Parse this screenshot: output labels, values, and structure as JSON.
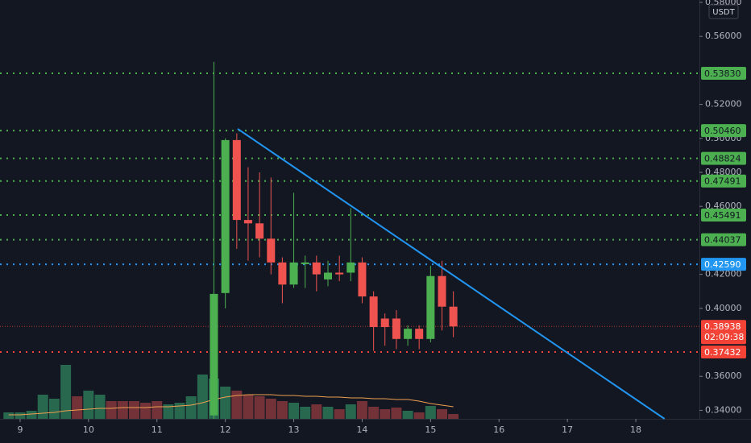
{
  "chart_data": {
    "type": "candlestick",
    "currency": "USDT",
    "xlim": [
      8.706,
      18.93
    ],
    "ylim": [
      0.335,
      0.5814
    ],
    "xticks": [
      9,
      10,
      11,
      12,
      13,
      14,
      15,
      16,
      17,
      18
    ],
    "yticks": [
      {
        "value": 0.58,
        "label": "0.58000"
      },
      {
        "value": 0.56,
        "label": "0.56000"
      },
      {
        "value": 0.52,
        "label": "0.52000"
      },
      {
        "value": 0.5,
        "label": "0.50000"
      },
      {
        "value": 0.48,
        "label": "0.48000"
      },
      {
        "value": 0.46,
        "label": "0.46000"
      },
      {
        "value": 0.42,
        "label": "0.42000"
      },
      {
        "value": 0.4,
        "label": "0.40000"
      },
      {
        "value": 0.36,
        "label": "0.36000"
      },
      {
        "value": 0.34,
        "label": "0.34000"
      }
    ],
    "up_color": "#4caf50",
    "down_color": "#ef5350",
    "candles": {
      "x": [
        11.833,
        12.0,
        12.167,
        12.333,
        12.5,
        12.667,
        12.833,
        13.0,
        13.167,
        13.333,
        13.5,
        13.667,
        13.833,
        14.0,
        14.167,
        14.333,
        14.5,
        14.667,
        14.833,
        15.0,
        15.167,
        15.333
      ],
      "open": [
        0.337,
        0.409,
        0.499,
        0.452,
        0.45,
        0.441,
        0.427,
        0.414,
        0.426,
        0.427,
        0.417,
        0.421,
        0.421,
        0.427,
        0.407,
        0.394,
        0.394,
        0.382,
        0.388,
        0.382,
        0.419,
        0.401
      ],
      "high": [
        0.545,
        0.5,
        0.503,
        0.483,
        0.48,
        0.477,
        0.43,
        0.468,
        0.431,
        0.431,
        0.428,
        0.431,
        0.459,
        0.43,
        0.41,
        0.397,
        0.399,
        0.39,
        0.39,
        0.425,
        0.428,
        0.41
      ],
      "low": [
        0.335,
        0.4,
        0.435,
        0.428,
        0.43,
        0.42,
        0.403,
        0.412,
        0.412,
        0.41,
        0.413,
        0.416,
        0.416,
        0.403,
        0.375,
        0.378,
        0.376,
        0.378,
        0.376,
        0.38,
        0.387,
        0.383
      ],
      "close": [
        0.4085,
        0.499,
        0.452,
        0.45,
        0.441,
        0.427,
        0.414,
        0.427,
        0.427,
        0.42,
        0.421,
        0.42,
        0.427,
        0.407,
        0.389,
        0.389,
        0.382,
        0.388,
        0.382,
        0.419,
        0.401,
        0.38938
      ]
    },
    "volume": {
      "x": [
        8.833,
        9.0,
        9.167,
        9.333,
        9.5,
        9.667,
        9.833,
        10.0,
        10.167,
        10.333,
        10.5,
        10.667,
        10.833,
        11.0,
        11.167,
        11.333,
        11.5,
        11.667,
        11.833,
        12.0,
        12.167,
        12.333,
        12.5,
        12.667,
        12.833,
        13.0,
        13.167,
        13.333,
        13.5,
        13.667,
        13.833,
        14.0,
        14.167,
        14.333,
        14.5,
        14.667,
        14.833,
        15.0,
        15.167,
        15.333
      ],
      "values": [
        8,
        8,
        10,
        30,
        25,
        67,
        28,
        35,
        30,
        22,
        22,
        22,
        20,
        22,
        18,
        20,
        28,
        55,
        50,
        40,
        35,
        30,
        28,
        25,
        22,
        20,
        15,
        18,
        15,
        12,
        18,
        22,
        15,
        12,
        14,
        10,
        8,
        16,
        12,
        6
      ],
      "colors": [
        "#2e7d5b",
        "#2e7d5b",
        "#2e7d5b",
        "#2e7d5b",
        "#2e7d5b",
        "#2e7d5b",
        "#8b3a3f",
        "#2e7d5b",
        "#2e7d5b",
        "#8b3a3f",
        "#8b3a3f",
        "#8b3a3f",
        "#8b3a3f",
        "#8b3a3f",
        "#2e7d5b",
        "#2e7d5b",
        "#2e7d5b",
        "#2e7d5b",
        "#2e7d5b",
        "#2e7d5b",
        "#8b3a3f",
        "#8b3a3f",
        "#8b3a3f",
        "#8b3a3f",
        "#8b3a3f",
        "#2e7d5b",
        "#2e7d5b",
        "#8b3a3f",
        "#2e7d5b",
        "#8b3a3f",
        "#2e7d5b",
        "#8b3a3f",
        "#8b3a3f",
        "#8b3a3f",
        "#8b3a3f",
        "#2e7d5b",
        "#8b3a3f",
        "#2e7d5b",
        "#8b3a3f",
        "#8b3a3f"
      ]
    },
    "ma": {
      "color": "#f0a050",
      "values": [
        5,
        5,
        6,
        7,
        8,
        10,
        11,
        12,
        13,
        13,
        14,
        14,
        14,
        15,
        15,
        16,
        17,
        20,
        24,
        27,
        29,
        30,
        30,
        30,
        29,
        29,
        28,
        28,
        27,
        27,
        26,
        26,
        25,
        25,
        24,
        24,
        22,
        19,
        17,
        15
      ]
    },
    "levels": [
      {
        "value": 0.5383,
        "label": "0.53830",
        "color": "#4caf50"
      },
      {
        "value": 0.5046,
        "label": "0.50460",
        "color": "#4caf50"
      },
      {
        "value": 0.48824,
        "label": "0.48824",
        "color": "#4caf50"
      },
      {
        "value": 0.47491,
        "label": "0.47491",
        "color": "#4caf50"
      },
      {
        "value": 0.45491,
        "label": "0.45491",
        "color": "#4caf50"
      },
      {
        "value": 0.44037,
        "label": "0.44037",
        "color": "#4caf50"
      },
      {
        "value": 0.4259,
        "label": "0.42590",
        "color": "#2196f3"
      },
      {
        "value": 0.37432,
        "label": "0.37432",
        "color": "#f44336"
      }
    ],
    "current_price": {
      "value": 0.38938,
      "label": "0.38938",
      "countdown": "02:09:38",
      "color": "#f44336"
    },
    "trendline": {
      "x": [
        12.18,
        18.42
      ],
      "y": [
        0.5056,
        0.335
      ],
      "color": "#2196f3"
    }
  }
}
